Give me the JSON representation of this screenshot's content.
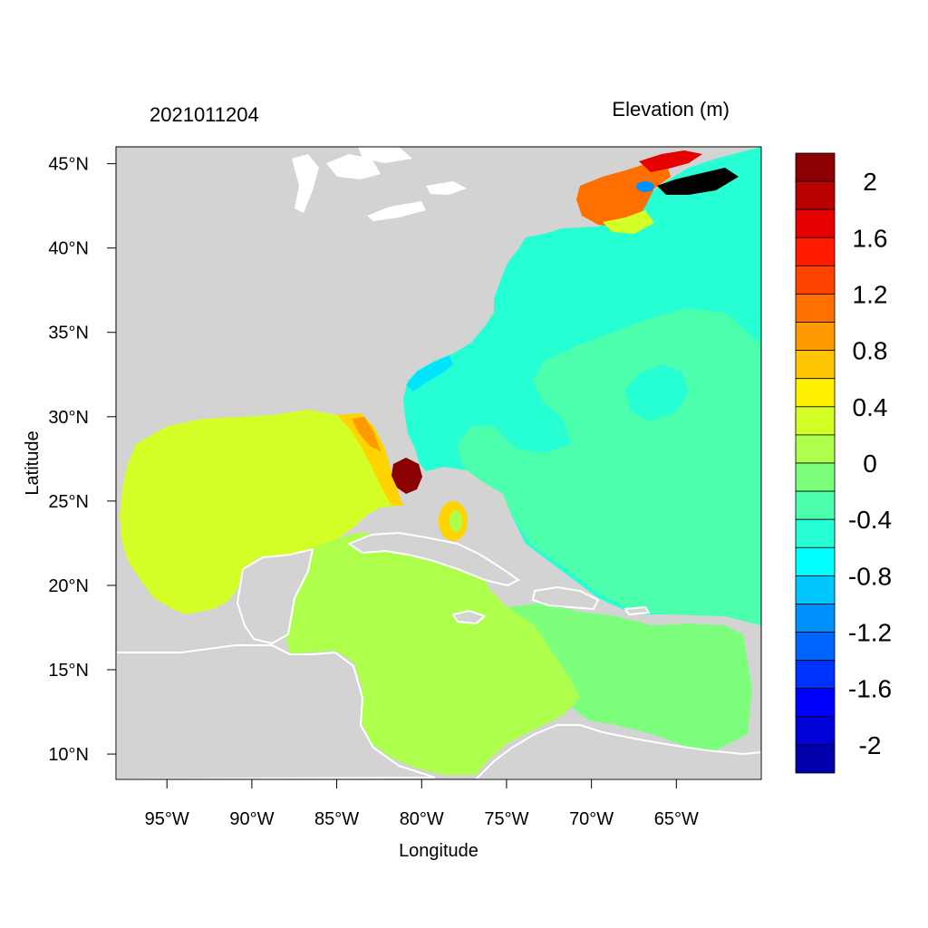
{
  "figure": {
    "timestamp": "2021011204",
    "title_right": "Elevation (m)",
    "xlabel": "Longitude",
    "ylabel": "Latitude"
  },
  "map": {
    "lon_range": [
      -98,
      -60
    ],
    "lat_range": [
      8.5,
      46
    ],
    "land_color": "#d3d3d3",
    "water_outline_color": "#ffffff",
    "x_ticks": [
      {
        "value": -95,
        "label": "95°W"
      },
      {
        "value": -90,
        "label": "90°W"
      },
      {
        "value": -85,
        "label": "85°W"
      },
      {
        "value": -80,
        "label": "80°W"
      },
      {
        "value": -75,
        "label": "75°W"
      },
      {
        "value": -70,
        "label": "70°W"
      },
      {
        "value": -65,
        "label": "65°W"
      }
    ],
    "y_ticks": [
      {
        "value": 45,
        "label": "45°N"
      },
      {
        "value": 40,
        "label": "40°N"
      },
      {
        "value": 35,
        "label": "35°N"
      },
      {
        "value": 30,
        "label": "30°N"
      },
      {
        "value": 25,
        "label": "25°N"
      },
      {
        "value": 20,
        "label": "20°N"
      },
      {
        "value": 15,
        "label": "15°N"
      },
      {
        "value": 10,
        "label": "10°N"
      }
    ],
    "regions": {
      "open_atlantic": {
        "value": -0.4,
        "color": "#26ffd4"
      },
      "sargasso_region": {
        "value": -0.2,
        "color": "#4cffad"
      },
      "caribbean_east": {
        "value": 0.0,
        "color": "#7dff7d"
      },
      "caribbean_west": {
        "value": 0.1,
        "color": "#adff4c"
      },
      "gulf_of_mexico": {
        "value": 0.3,
        "color": "#d4ff26"
      },
      "west_florida_shelf": {
        "value": 0.7,
        "color": "#ffd400"
      },
      "florida_peak": {
        "value": 2.2,
        "color": "#8b0000"
      },
      "gulf_of_maine": {
        "value": 1.2,
        "color": "#ff7000"
      },
      "nova_scotia_coast": {
        "value": 1.8,
        "color": "#e60000"
      },
      "shelf_depression": {
        "value": -0.8,
        "color": "#00e5ff"
      },
      "deep_depression": {
        "value": -1.2,
        "color": "#0091ff"
      }
    }
  },
  "colorbar": {
    "colors": [
      "#8b0000",
      "#bb0000",
      "#e60000",
      "#ff1a00",
      "#ff4400",
      "#ff7000",
      "#ff9a00",
      "#ffc600",
      "#fff200",
      "#d4ff26",
      "#adff4c",
      "#7dff7d",
      "#4cffad",
      "#26ffd4",
      "#00ffff",
      "#00c8ff",
      "#0091ff",
      "#0064ff",
      "#0032ff",
      "#0000ff",
      "#0000d8",
      "#0000ad"
    ],
    "labels": [
      "2",
      "1.6",
      "1.2",
      "0.8",
      "0.4",
      "0",
      "-0.4",
      "-0.8",
      "-1.2",
      "-1.6",
      "-2"
    ]
  }
}
